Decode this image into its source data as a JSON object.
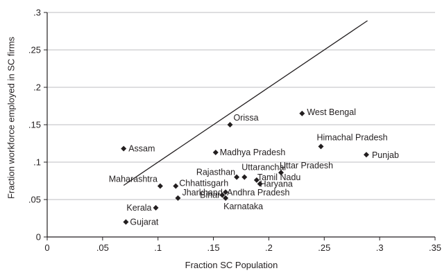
{
  "chart_data": {
    "type": "scatter",
    "title": "",
    "xlabel": "Fraction SC Population",
    "ylabel": "Fraction workforce employed in SC firms",
    "xlim": [
      0,
      0.35
    ],
    "ylim": [
      0,
      0.3
    ],
    "x_ticks": [
      0,
      0.05,
      0.1,
      0.15,
      0.2,
      0.25,
      0.3,
      0.35
    ],
    "x_tick_labels": [
      "0",
      ".05",
      ".1",
      ".15",
      ".2",
      ".25",
      ".3",
      ".35"
    ],
    "y_ticks": [
      0,
      0.05,
      0.1,
      0.15,
      0.2,
      0.25,
      0.3
    ],
    "y_tick_labels": [
      "0",
      ".05",
      ".1",
      ".15",
      ".2",
      ".25",
      ".3"
    ],
    "grid": "horizontal",
    "marker": "diamond",
    "marker_color": "#231f20",
    "line_color": "#231f20",
    "points": [
      {
        "label": "Gujarat",
        "x": 0.071,
        "y": 0.02
      },
      {
        "label": "Kerala",
        "x": 0.098,
        "y": 0.039
      },
      {
        "label": "Jharkhand",
        "x": 0.118,
        "y": 0.052
      },
      {
        "label": "Maharashtra",
        "x": 0.102,
        "y": 0.068
      },
      {
        "label": "Chhattisgarh",
        "x": 0.116,
        "y": 0.068
      },
      {
        "label": "Assam",
        "x": 0.069,
        "y": 0.118
      },
      {
        "label": "Bihar",
        "x": 0.158,
        "y": 0.056
      },
      {
        "label": "Andhra Pradesh",
        "x": 0.161,
        "y": 0.06
      },
      {
        "label": "Karnataka",
        "x": 0.161,
        "y": 0.052
      },
      {
        "label": "Rajasthan",
        "x": 0.171,
        "y": 0.08
      },
      {
        "label": "Uttaranchal",
        "x": 0.178,
        "y": 0.08
      },
      {
        "label": "Tamil Nadu",
        "x": 0.189,
        "y": 0.076
      },
      {
        "label": "Haryana",
        "x": 0.192,
        "y": 0.071
      },
      {
        "label": "Uttar Pradesh",
        "x": 0.211,
        "y": 0.086
      },
      {
        "label": "Madhya Pradesh",
        "x": 0.152,
        "y": 0.113
      },
      {
        "label": "Orissa",
        "x": 0.165,
        "y": 0.15
      },
      {
        "label": "West Bengal",
        "x": 0.23,
        "y": 0.165
      },
      {
        "label": "Himachal Pradesh",
        "x": 0.247,
        "y": 0.121
      },
      {
        "label": "Punjab",
        "x": 0.288,
        "y": 0.11
      }
    ],
    "reference_line": {
      "x": [
        0.069,
        0.289
      ],
      "y": [
        0.069,
        0.289
      ]
    }
  }
}
